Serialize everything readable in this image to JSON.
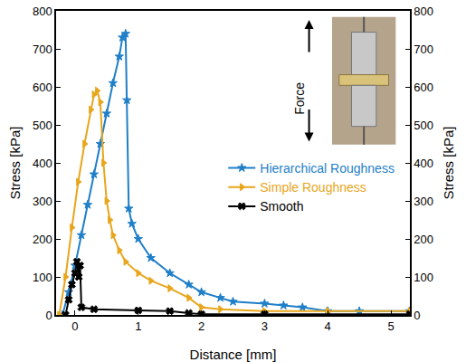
{
  "chart_data": {
    "type": "line",
    "x_label": "Distance [mm]",
    "y_label": "Stress [kPa]",
    "y2_label": "Stress [kPa]",
    "xlim": [
      -0.3,
      5.3
    ],
    "xticks": [
      0,
      1,
      2,
      3,
      4,
      5
    ],
    "ylim": [
      0,
      800
    ],
    "yticks": [
      0,
      100,
      200,
      300,
      400,
      500,
      600,
      700,
      800
    ],
    "y2lim": [
      0,
      800
    ],
    "y2ticks": [
      0,
      100,
      200,
      300,
      400,
      500,
      600,
      700,
      800
    ],
    "grid": false,
    "legend": "right",
    "annotations": [
      "Force"
    ],
    "series": [
      {
        "name": "Hierarchical Roughness",
        "color": "#1f7fc8",
        "marker": "star",
        "line_style": "solid",
        "x": [
          -0.2,
          -0.1,
          0,
          0.1,
          0.2,
          0.3,
          0.4,
          0.5,
          0.6,
          0.7,
          0.75,
          0.8,
          0.82,
          0.85,
          0.9,
          1.0,
          1.2,
          1.5,
          1.8,
          2.0,
          2.3,
          2.5,
          3.0,
          3.3,
          3.6,
          4.0,
          4.5,
          5.3
        ],
        "values": [
          0,
          60,
          130,
          210,
          290,
          370,
          450,
          530,
          610,
          680,
          730,
          740,
          565,
          280,
          240,
          200,
          150,
          110,
          80,
          60,
          45,
          35,
          30,
          25,
          20,
          10,
          10,
          10
        ]
      },
      {
        "name": "Simple Roughness",
        "color": "#e8a61c",
        "marker": "triangle-right",
        "line_style": "solid",
        "x": [
          -0.25,
          -0.15,
          -0.05,
          0.05,
          0.15,
          0.25,
          0.3,
          0.35,
          0.4,
          0.45,
          0.5,
          0.55,
          0.6,
          0.7,
          0.8,
          1.0,
          1.2,
          1.5,
          1.8,
          2.0,
          2.3,
          3.0,
          4.0,
          5.3
        ],
        "values": [
          0,
          100,
          230,
          350,
          450,
          540,
          580,
          590,
          560,
          400,
          300,
          250,
          210,
          170,
          140,
          110,
          90,
          70,
          45,
          20,
          15,
          10,
          10,
          10
        ]
      },
      {
        "name": "Smooth",
        "color": "#000000",
        "marker": "x",
        "line_style": "solid",
        "x": [
          -0.15,
          -0.1,
          -0.05,
          0,
          0.03,
          0.06,
          0.08,
          0.1,
          0.3,
          1.0,
          1.5,
          1.8,
          2.0,
          3.0,
          5.3
        ],
        "values": [
          0,
          40,
          80,
          110,
          140,
          100,
          130,
          20,
          15,
          12,
          10,
          5,
          2,
          2,
          2
        ]
      }
    ]
  }
}
